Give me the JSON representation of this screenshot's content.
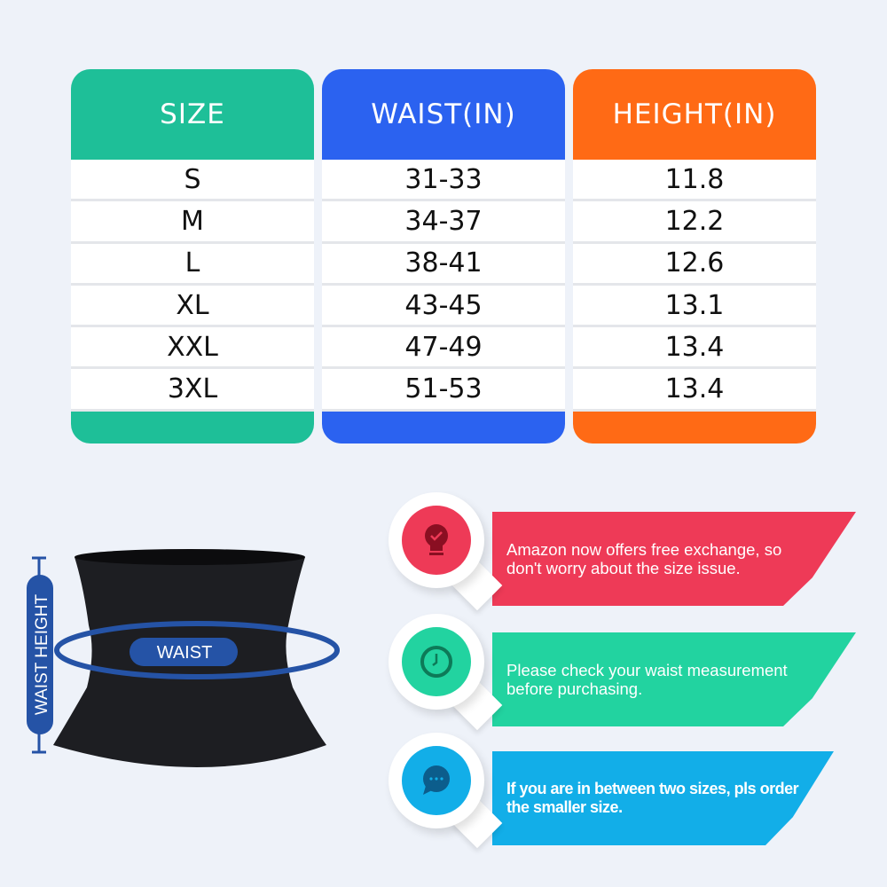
{
  "table": {
    "headers": [
      "SIZE",
      "WAIST(IN)",
      "HEIGHT(IN)"
    ],
    "colors": [
      "#1ebf98",
      "#2b62f0",
      "#ff6a15"
    ],
    "rows": [
      [
        "S",
        "31-33",
        "11.8"
      ],
      [
        "M",
        "34-37",
        "12.2"
      ],
      [
        "L",
        "38-41",
        "12.6"
      ],
      [
        "XL",
        "43-45",
        "13.1"
      ],
      [
        "XXL",
        "47-49",
        "13.4"
      ],
      [
        "3XL",
        "51-53",
        "13.4"
      ]
    ]
  },
  "diagram": {
    "waist_label": "WAIST",
    "height_label": "WAIST HEIGHT",
    "accent": "#2553a6"
  },
  "tips": [
    {
      "icon": "lightbulb-check-icon",
      "color": "#ee3a57",
      "line1": "Amazon now offers free exchange, so",
      "line2": "don't worry about the size issue."
    },
    {
      "icon": "clock-icon",
      "color": "#22d3a0",
      "line1": "Please check your waist measurement",
      "line2": "before purchasing."
    },
    {
      "icon": "chat-bubble-icon",
      "color": "#12aee8",
      "line1": "If you are in between two sizes, pls order",
      "line2": "the smaller size."
    }
  ]
}
